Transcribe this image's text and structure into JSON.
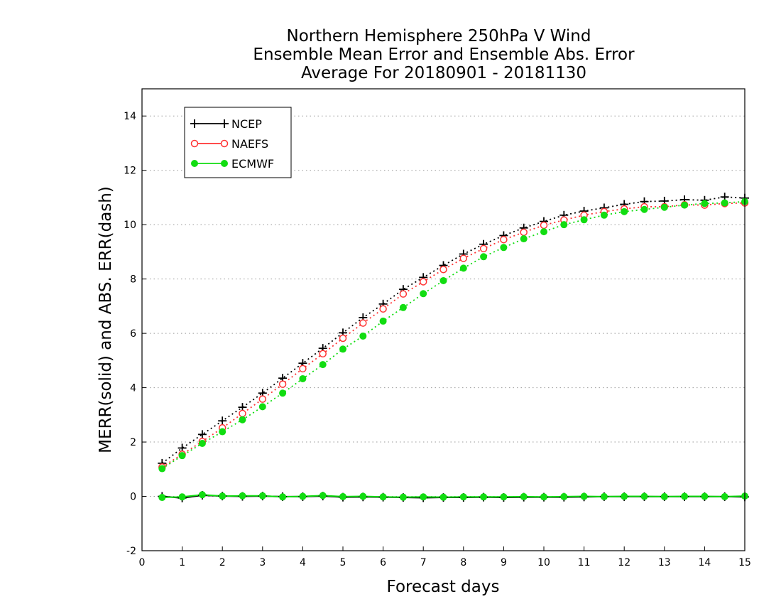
{
  "chart_data": {
    "type": "line",
    "title_lines": [
      "Northern Hemisphere 250hPa V Wind",
      "Ensemble Mean Error and Ensemble Abs. Error",
      "Average For 20180901 - 20181130"
    ],
    "xlabel": "Forecast days",
    "ylabel": "MERR(solid) and ABS. ERR(dash)",
    "xlim": [
      0,
      15
    ],
    "ylim": [
      -2,
      15
    ],
    "xticks": [
      "0",
      "1",
      "2",
      "3",
      "4",
      "5",
      "6",
      "7",
      "8",
      "9",
      "10",
      "11",
      "12",
      "13",
      "14",
      "15"
    ],
    "yticks": [
      "-2",
      "0",
      "2",
      "4",
      "6",
      "8",
      "10",
      "12",
      "14"
    ],
    "grid": "horizontal dotted",
    "legend_position": "top-left",
    "x": [
      0.5,
      1,
      1.5,
      2,
      2.5,
      3,
      3.5,
      4,
      4.5,
      5,
      5.5,
      6,
      6.5,
      7,
      7.5,
      8,
      8.5,
      9,
      9.5,
      10,
      10.5,
      11,
      11.5,
      12,
      12.5,
      13,
      13.5,
      14,
      14.5,
      15
    ],
    "series": [
      {
        "name": "NCEP",
        "color": "#000000",
        "marker": "plus",
        "abs_error": [
          1.22,
          1.78,
          2.28,
          2.78,
          3.28,
          3.8,
          4.35,
          4.9,
          5.45,
          6.02,
          6.58,
          7.08,
          7.62,
          8.06,
          8.5,
          8.92,
          9.28,
          9.6,
          9.88,
          10.12,
          10.35,
          10.5,
          10.62,
          10.75,
          10.85,
          10.87,
          10.92,
          10.9,
          11.02,
          10.98
        ],
        "mean_error": [
          0.0,
          -0.06,
          0.04,
          0.01,
          0.0,
          0.01,
          -0.01,
          -0.01,
          0.01,
          -0.03,
          -0.02,
          -0.03,
          -0.04,
          -0.05,
          -0.04,
          -0.04,
          -0.03,
          -0.04,
          -0.03,
          -0.03,
          -0.03,
          -0.02,
          -0.01,
          -0.01,
          -0.01,
          -0.01,
          -0.01,
          -0.01,
          -0.01,
          -0.02
        ]
      },
      {
        "name": "NAEFS",
        "color": "#ff3333",
        "marker": "open-circle",
        "abs_error": [
          1.08,
          1.55,
          2.02,
          2.52,
          3.05,
          3.58,
          4.13,
          4.7,
          5.25,
          5.82,
          6.38,
          6.9,
          7.45,
          7.9,
          8.35,
          8.76,
          9.12,
          9.45,
          9.72,
          9.98,
          10.17,
          10.35,
          10.48,
          10.58,
          10.66,
          10.66,
          10.73,
          10.72,
          10.78,
          10.8
        ]
      },
      {
        "name": "ECMWF",
        "color": "#11dd11",
        "marker": "filled-circle",
        "abs_error": [
          1.02,
          1.5,
          1.95,
          2.38,
          2.82,
          3.3,
          3.8,
          4.33,
          4.85,
          5.42,
          5.9,
          6.45,
          6.95,
          7.46,
          7.94,
          8.4,
          8.82,
          9.16,
          9.48,
          9.74,
          10.0,
          10.18,
          10.35,
          10.48,
          10.56,
          10.64,
          10.72,
          10.78,
          10.8,
          10.85
        ],
        "mean_error": [
          -0.04,
          -0.02,
          0.06,
          0.01,
          0.02,
          0.02,
          -0.02,
          0.0,
          0.03,
          -0.01,
          0.0,
          -0.02,
          -0.03,
          -0.02,
          -0.03,
          -0.02,
          -0.02,
          -0.02,
          -0.01,
          -0.02,
          -0.01,
          0.0,
          -0.01,
          0.0,
          0.0,
          -0.01,
          0.0,
          0.0,
          -0.01,
          0.01
        ]
      }
    ]
  }
}
